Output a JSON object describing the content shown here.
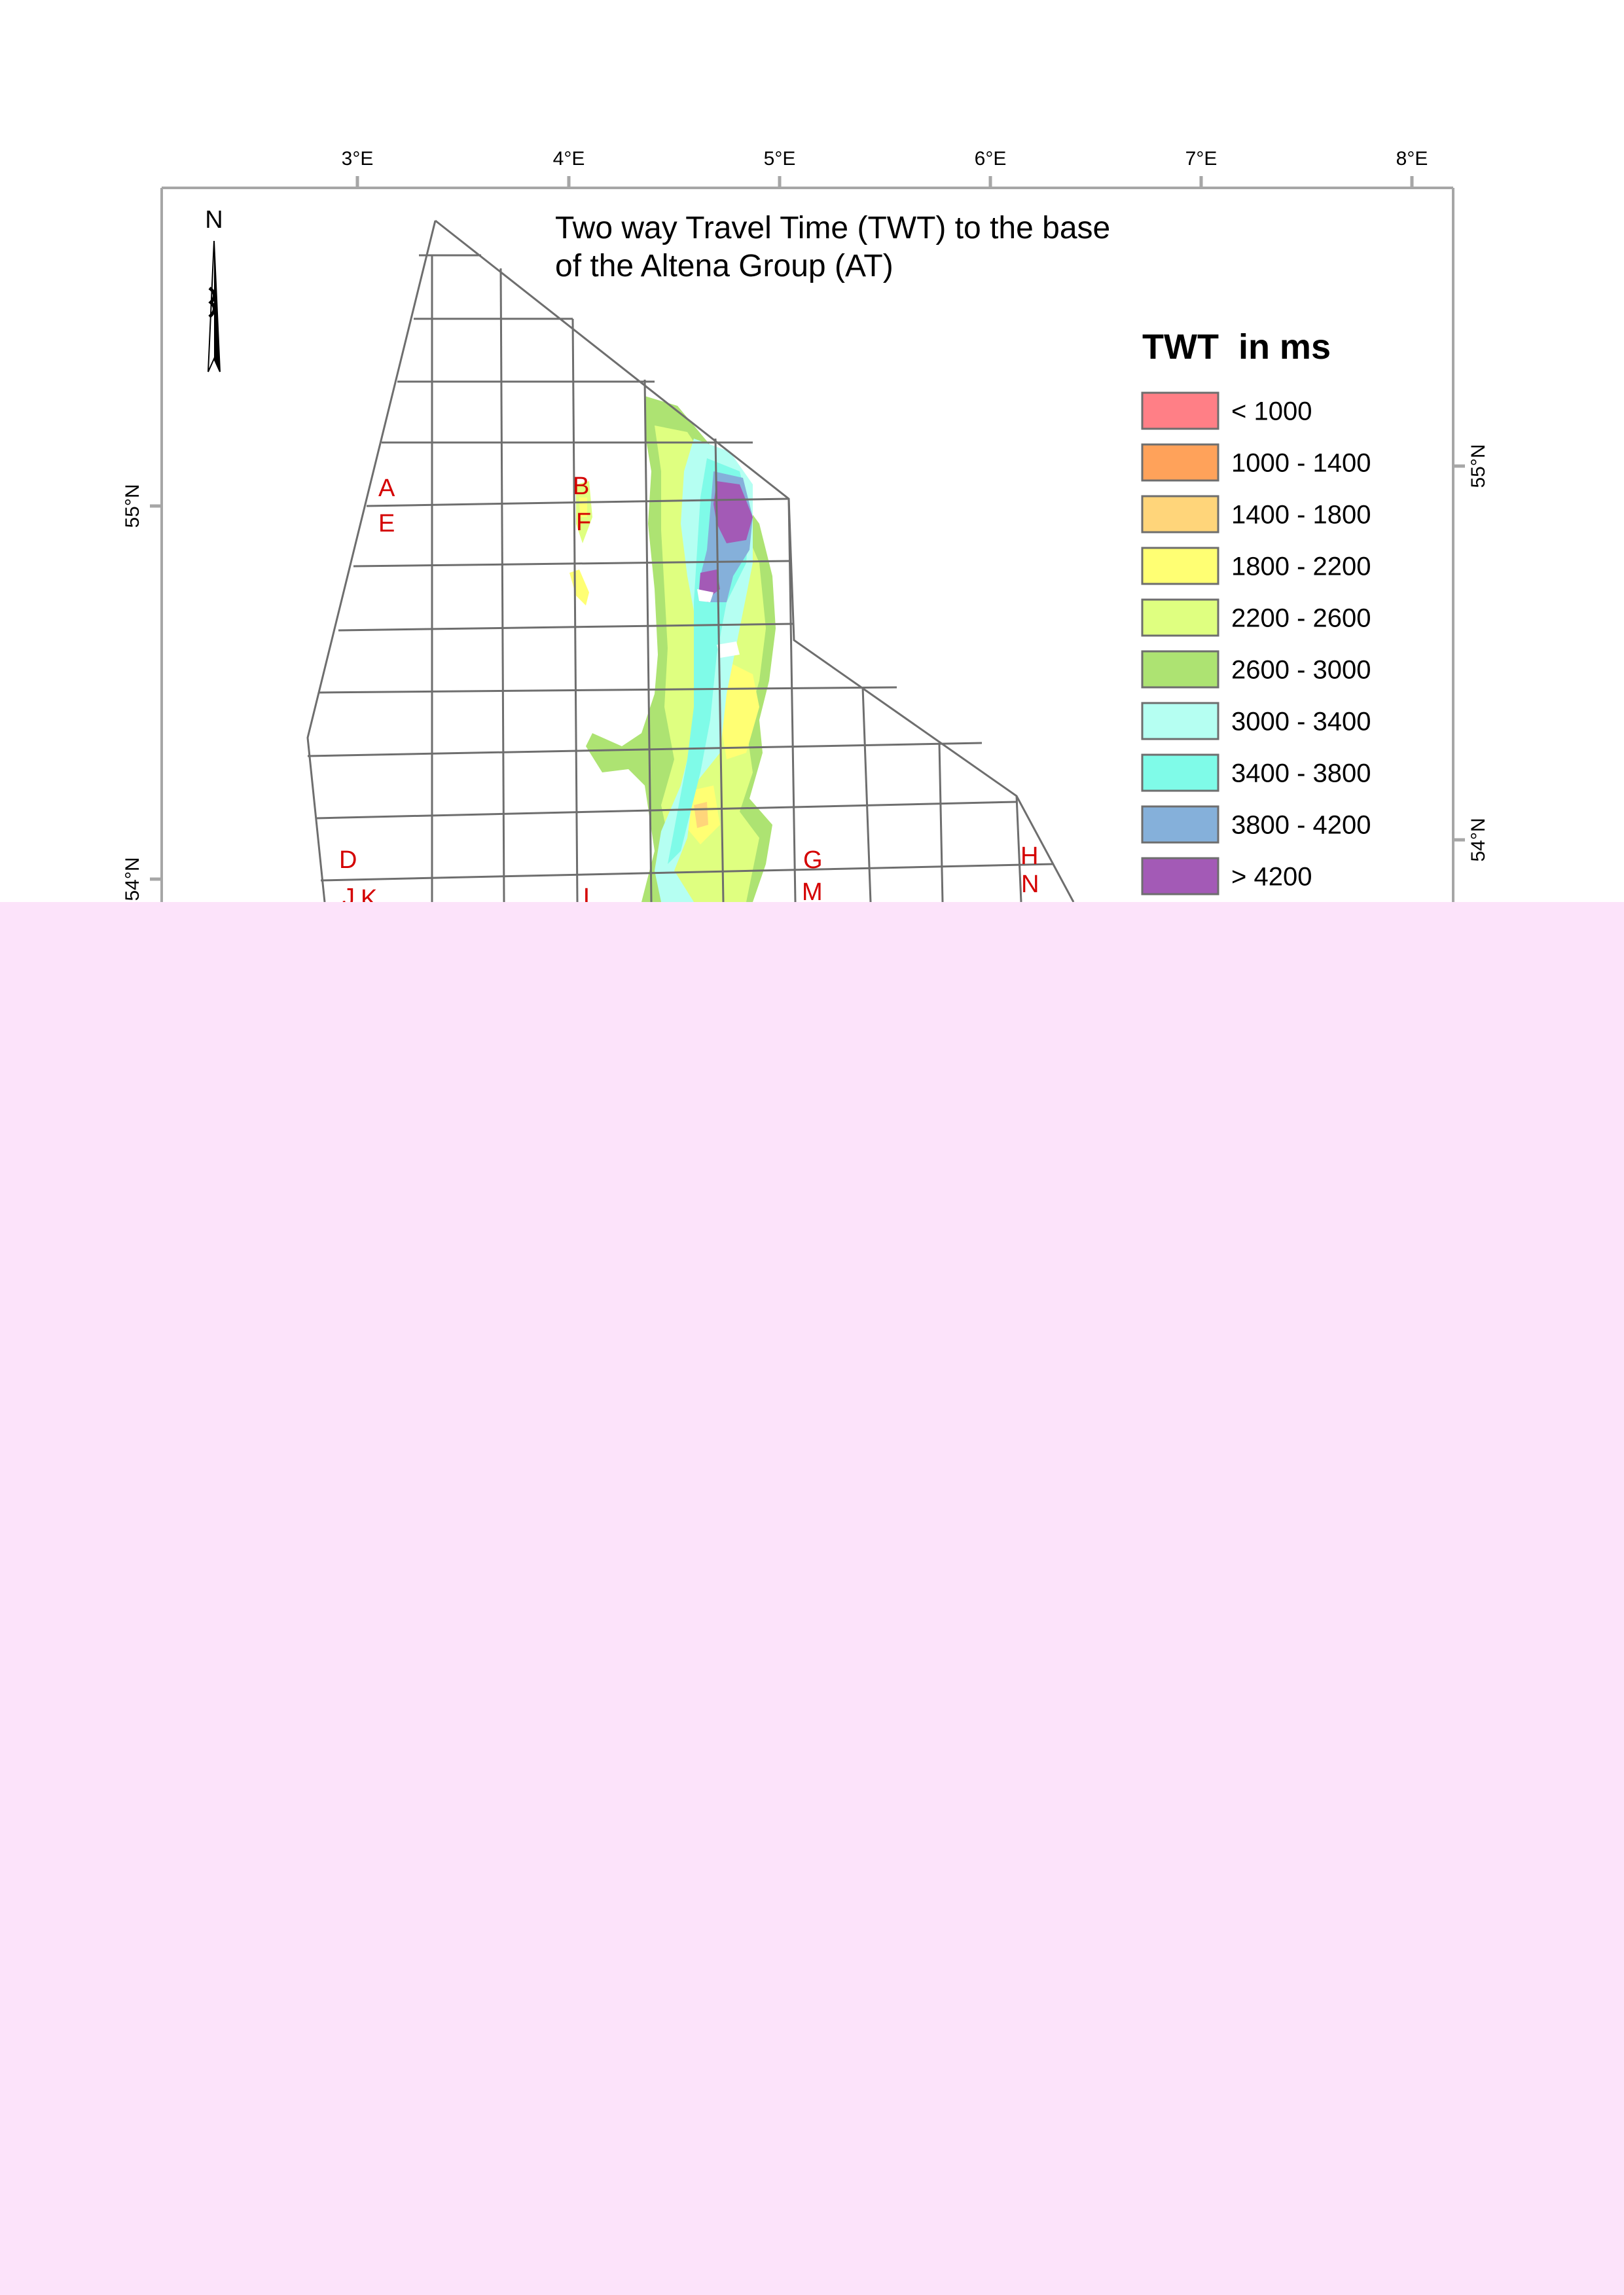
{
  "map": {
    "title_line1": "Two way Travel Time (TWT) to the base",
    "title_line2": "of the Altena Group (AT)",
    "north_label": "N",
    "longitude_labels": [
      "3°E",
      "4°E",
      "5°E",
      "6°E",
      "7°E",
      "8°E"
    ],
    "latitude_labels": [
      "55°N",
      "54°N"
    ],
    "block_labels": [
      "A",
      "B",
      "D",
      "E",
      "F",
      "G",
      "H",
      "J",
      "K",
      "L",
      "M",
      "N"
    ],
    "colors": {
      "frame": "#a6a6a6",
      "outline": "#6e6e6e",
      "block_label": "#d40000",
      "pink_area": "#fce3fa"
    }
  },
  "legend": {
    "title": "TWT  in ms",
    "items": [
      {
        "label": "< 1000",
        "color": "#ff7f86"
      },
      {
        "label": "1000 - 1400",
        "color": "#ffa25a"
      },
      {
        "label": "1400 - 1800",
        "color": "#ffd57a"
      },
      {
        "label": "1800 - 2200",
        "color": "#ffff73"
      },
      {
        "label": "2200 - 2600",
        "color": "#dfff80"
      },
      {
        "label": "2600 - 3000",
        "color": "#ade372"
      },
      {
        "label": "3000 - 3400",
        "color": "#b5fff2"
      },
      {
        "label": "3400 - 3800",
        "color": "#7ffbe8"
      },
      {
        "label": "3800 - 4200",
        "color": "#85b0da"
      },
      {
        "label": "> 4200",
        "color": "#a35ab6"
      }
    ]
  }
}
